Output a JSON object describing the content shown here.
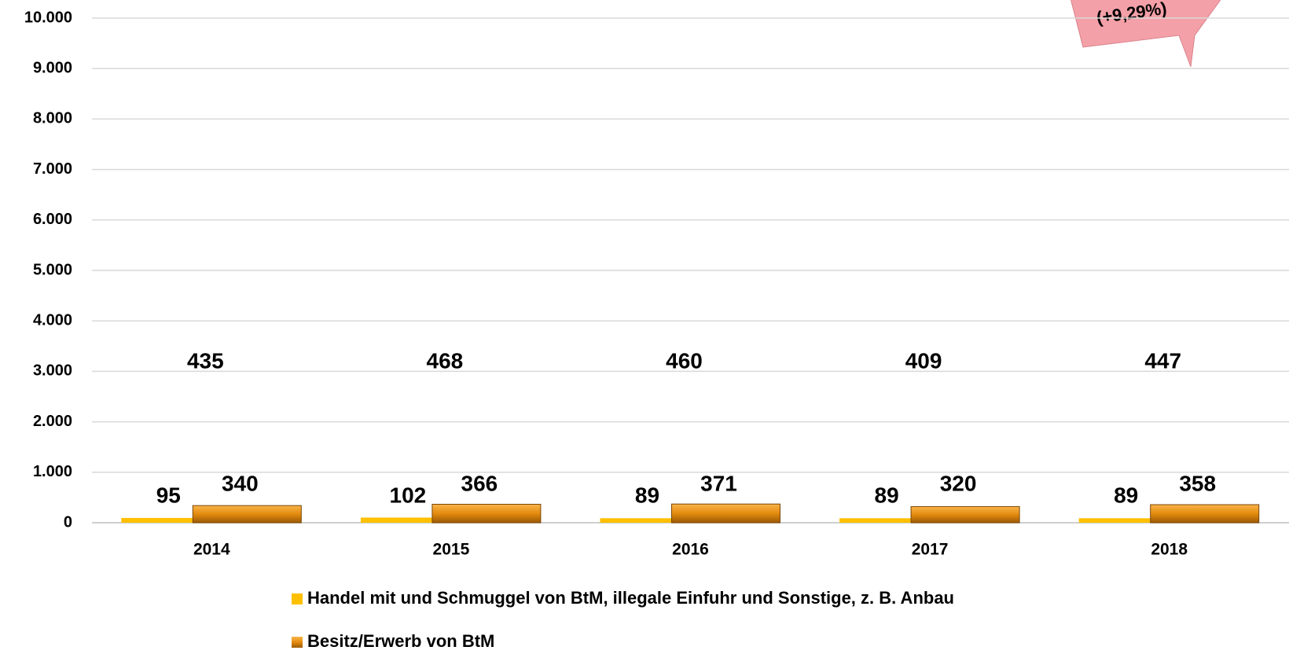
{
  "chart_data": {
    "type": "bar",
    "categories": [
      "2014",
      "2015",
      "2016",
      "2017",
      "2018"
    ],
    "series": [
      {
        "name": "Handel mit und Schmuggel von BtM, illegale Einfuhr und Sonstige, z. B. Anbau",
        "color": "#ffc000",
        "values": [
          95,
          102,
          89,
          89,
          89
        ]
      },
      {
        "name": "Besitz/Erwerb von BtM",
        "color": "#e38b0e",
        "values": [
          340,
          366,
          371,
          320,
          358
        ]
      }
    ],
    "totals": [
      435,
      468,
      460,
      409,
      447
    ],
    "annotation": "(+9,29%)",
    "ylim": [
      0,
      10000
    ],
    "yticks": [
      0,
      {
        "value": 1000,
        "label": "1.000"
      },
      {
        "value": 2000,
        "label": "2.000"
      },
      {
        "value": 3000,
        "label": "3.000"
      },
      {
        "value": 4000,
        "label": "4.000"
      },
      {
        "value": 5000,
        "label": "5.000"
      },
      {
        "value": 6000,
        "label": "6.000"
      },
      {
        "value": 7000,
        "label": "7.000"
      },
      {
        "value": 8000,
        "label": "8.000"
      },
      {
        "value": 9000,
        "label": "9.000"
      },
      {
        "value": 10000,
        "label": "10.000"
      }
    ],
    "grid": true
  }
}
